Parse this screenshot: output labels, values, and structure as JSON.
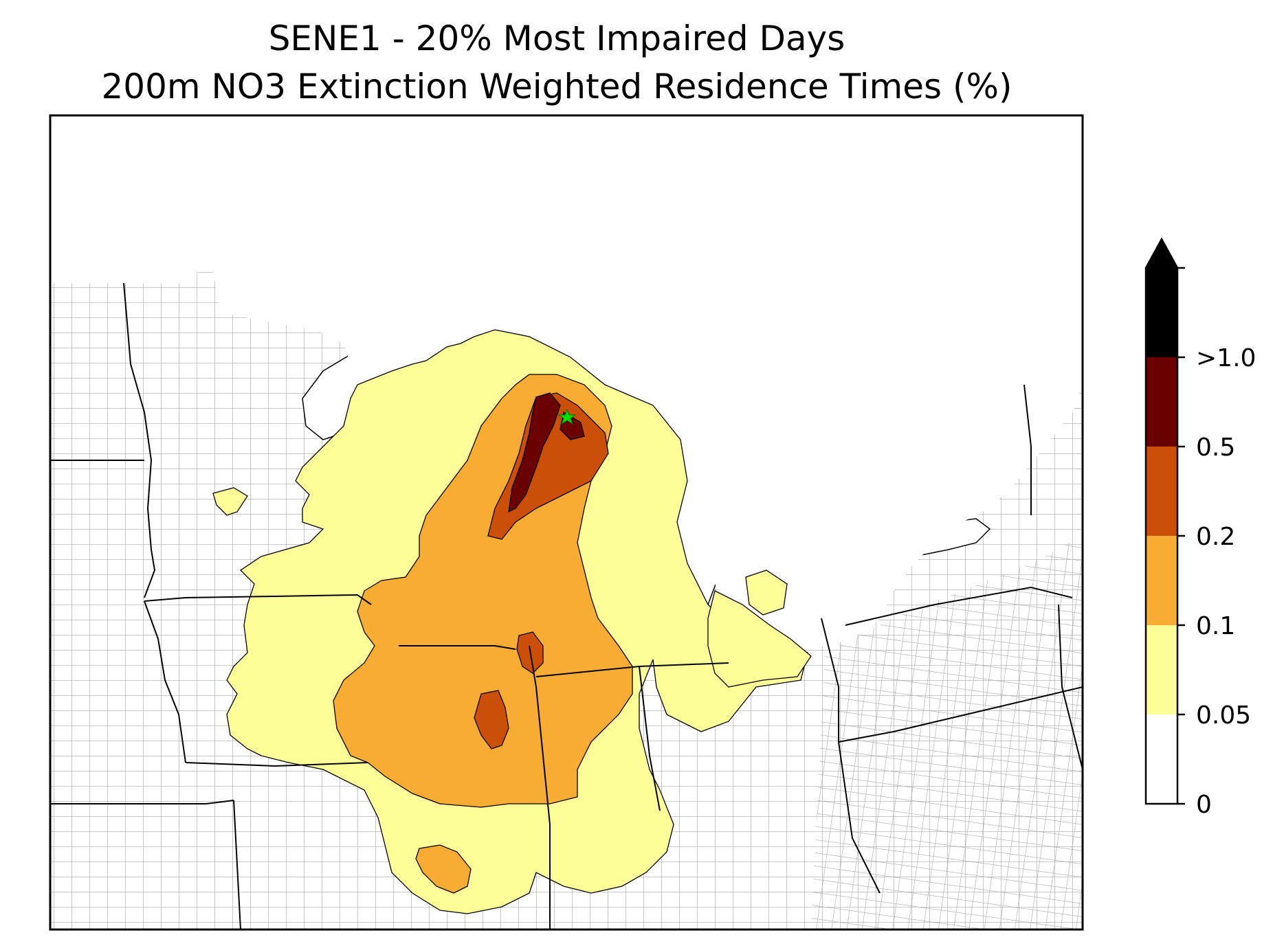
{
  "title": {
    "line1": "SENE1 - 20% Most Impaired Days",
    "line2": "200m NO3 Extinction Weighted Residence Times (%)"
  },
  "colorbar": {
    "labels": [
      ">1.0",
      "0.5",
      "0.2",
      "0.1",
      "0.05",
      "0"
    ],
    "bands": [
      {
        "from": "0.5",
        "to": ">1.0",
        "color": "#6b0000"
      },
      {
        "from": "0.2",
        "to": "0.5",
        "color": "#cc4f08"
      },
      {
        "from": "0.1",
        "to": "0.2",
        "color": "#f9ac34"
      },
      {
        "from": "0.05",
        "to": "0.1",
        "color": "#fefe99"
      },
      {
        "from": "0",
        "to": "0.05",
        "color": "#ffffff"
      }
    ],
    "extend_color": "#000000",
    "extend": "max"
  },
  "map": {
    "region": "Upper Midwest and Great Lakes",
    "receptor_marker": {
      "symbol": "star",
      "color": "#00e000"
    },
    "colors": {
      "very_high": "#6b0000",
      "high": "#cc4f08",
      "mid": "#f9ac34",
      "low": "#fefe99",
      "state_line": "#000000",
      "county_line": "#a8a8a8"
    }
  }
}
